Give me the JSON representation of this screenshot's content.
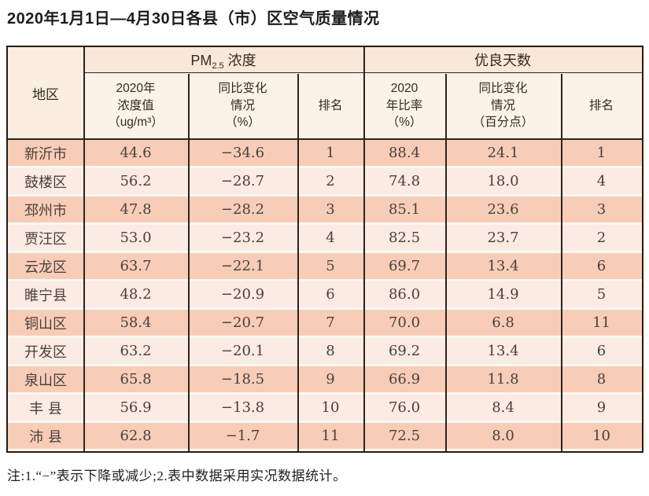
{
  "page": {
    "title": "2020年1月1日—4月30日各县（市）区空气质量情况",
    "footnote": "注:1.“−”表示下降或减少;2.表中数据采用实况数据统计。"
  },
  "table": {
    "header": {
      "region": "地区",
      "pm25_group": {
        "prefix": "PM",
        "sub": "2.5",
        "suffix": " 浓度"
      },
      "good_days_group": "优良天数",
      "sub_columns": {
        "pm25_value": "2020年\n浓度值\n（ug/m³）",
        "pm25_change": "同比变化\n情况\n（%）",
        "pm25_rank": "排名",
        "good_rate": "2020\n年比率\n（%）",
        "good_change": "同比变化\n情况\n（百分点）",
        "good_rank": "排名"
      }
    },
    "rows": [
      [
        "新沂市",
        "44.6",
        "−34.6",
        "1",
        "88.4",
        "24.1",
        "1"
      ],
      [
        "鼓楼区",
        "56.2",
        "−28.7",
        "2",
        "74.8",
        "18.0",
        "4"
      ],
      [
        "邳州市",
        "47.8",
        "−28.2",
        "3",
        "85.1",
        "23.6",
        "3"
      ],
      [
        "贾汪区",
        "53.0",
        "−23.2",
        "4",
        "82.5",
        "23.7",
        "2"
      ],
      [
        "云龙区",
        "63.7",
        "−22.1",
        "5",
        "69.7",
        "13.4",
        "6"
      ],
      [
        "睢宁县",
        "48.2",
        "−20.9",
        "6",
        "86.0",
        "14.9",
        "5"
      ],
      [
        "铜山区",
        "58.4",
        "−20.7",
        "7",
        "70.0",
        "6.8",
        "11"
      ],
      [
        "开发区",
        "63.2",
        "−20.1",
        "8",
        "69.2",
        "13.4",
        "6"
      ],
      [
        "泉山区",
        "65.8",
        "−18.5",
        "9",
        "66.9",
        "11.8",
        "8"
      ],
      [
        "丰 县",
        "56.9",
        "−13.8",
        "10",
        "76.0",
        "8.4",
        "9"
      ],
      [
        "沛 县",
        "62.8",
        "−1.7",
        "11",
        "72.5",
        "8.0",
        "10"
      ]
    ]
  },
  "colors": {
    "row_odd": "#f8cdb8",
    "row_even": "#fbebe3",
    "header_band1": "#f9e8da",
    "header_band2": "#fcf3e8",
    "region_header": "#faeee0",
    "border_dark": "#2e231a",
    "row_gap": "#fdf8f3"
  },
  "chart_data": {
    "type": "table",
    "title": "2020年1月1日—4月30日各县（市）区空气质量情况",
    "column_groups": [
      "地区",
      "PM2.5浓度",
      "优良天数"
    ],
    "columns": [
      "地区",
      "PM2.5浓度 2020年浓度值（ug/m³）",
      "PM2.5浓度 同比变化情况（%）",
      "PM2.5浓度 排名",
      "优良天数 2020年比率（%）",
      "优良天数 同比变化情况（百分点）",
      "优良天数 排名"
    ],
    "rows": [
      [
        "新沂市",
        44.6,
        -34.6,
        1,
        88.4,
        24.1,
        1
      ],
      [
        "鼓楼区",
        56.2,
        -28.7,
        2,
        74.8,
        18.0,
        4
      ],
      [
        "邳州市",
        47.8,
        -28.2,
        3,
        85.1,
        23.6,
        3
      ],
      [
        "贾汪区",
        53.0,
        -23.2,
        4,
        82.5,
        23.7,
        2
      ],
      [
        "云龙区",
        63.7,
        -22.1,
        5,
        69.7,
        13.4,
        6
      ],
      [
        "睢宁县",
        48.2,
        -20.9,
        6,
        86.0,
        14.9,
        5
      ],
      [
        "铜山区",
        58.4,
        -20.7,
        7,
        70.0,
        6.8,
        11
      ],
      [
        "开发区",
        63.2,
        -20.1,
        8,
        69.2,
        13.4,
        6
      ],
      [
        "泉山区",
        65.8,
        -18.5,
        9,
        66.9,
        11.8,
        8
      ],
      [
        "丰县",
        56.9,
        -13.8,
        10,
        76.0,
        8.4,
        9
      ],
      [
        "沛县",
        62.8,
        -1.7,
        11,
        72.5,
        8.0,
        10
      ]
    ],
    "footnote": "注:1.“−”表示下降或减少;2.表中数据采用实况数据统计。"
  }
}
